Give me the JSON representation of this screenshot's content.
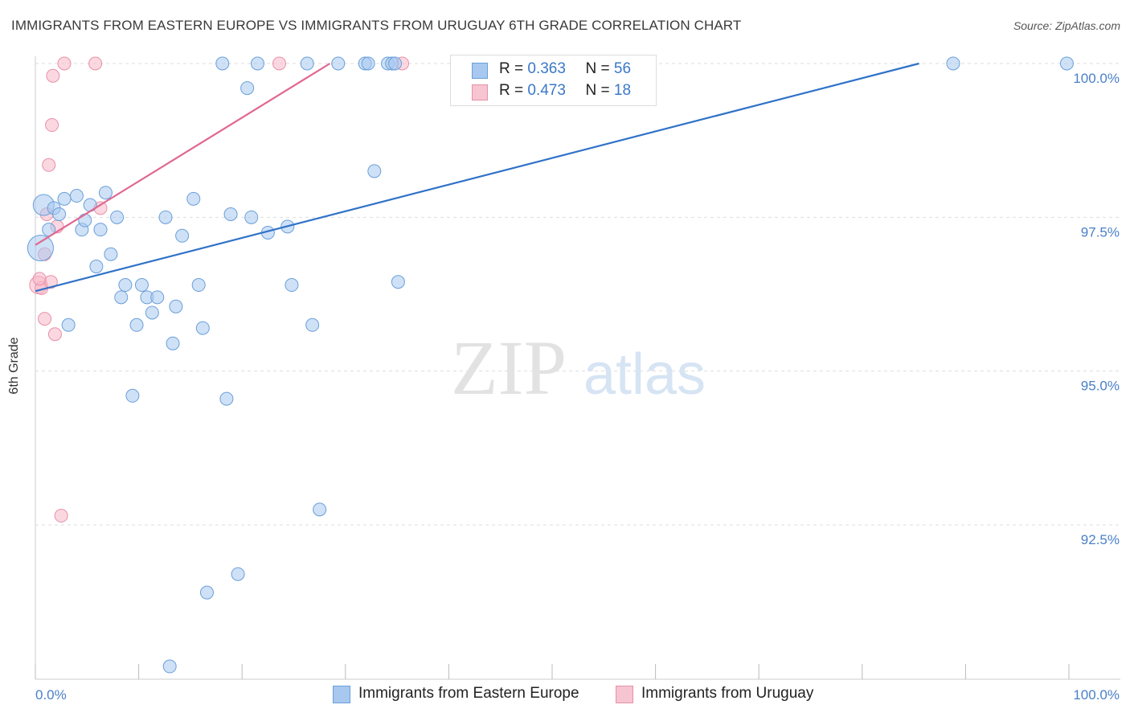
{
  "header": {
    "title": "IMMIGRANTS FROM EASTERN EUROPE VS IMMIGRANTS FROM URUGUAY 6TH GRADE CORRELATION CHART",
    "source": "Source: ZipAtlas.com"
  },
  "watermark": {
    "zip": "ZIP",
    "atlas": "atlas"
  },
  "legend": {
    "r_label": "R =",
    "n_label": "N =",
    "series1": {
      "r": "0.363",
      "n": "56"
    },
    "series2": {
      "r": "0.473",
      "n": "18"
    }
  },
  "colors": {
    "blue_fill": "#a8c8f0",
    "blue_stroke": "#6a9fd8",
    "blue_line": "#2f72c8",
    "pink_fill": "#f7b8c8",
    "pink_stroke": "#e890a8",
    "pink_line": "#e06890",
    "tick_label": "#4a80c8",
    "grid": "#dddddd"
  },
  "chart_data": {
    "type": "scatter",
    "title": "IMMIGRANTS FROM EASTERN EUROPE VS IMMIGRANTS FROM URUGUAY 6TH GRADE CORRELATION CHART",
    "xlabel": "",
    "ylabel": "6th Grade",
    "xlim": [
      0,
      100
    ],
    "ylim": [
      90.2,
      100.3
    ],
    "x_tick_labels": [
      "0.0%",
      "100.0%"
    ],
    "y_ticks": [
      {
        "value": 100.0,
        "label": "100.0%"
      },
      {
        "value": 97.5,
        "label": "97.5%"
      },
      {
        "value": 95.0,
        "label": "95.0%"
      },
      {
        "value": 92.5,
        "label": "92.5%"
      }
    ],
    "series": [
      {
        "name": "Immigrants from Eastern Europe",
        "color": "blue",
        "r": 0.363,
        "n": 56,
        "trend": {
          "x": [
            0,
            85.5
          ],
          "y": [
            96.3,
            100.0
          ]
        },
        "points": [
          {
            "x": 0.8,
            "y": 97.7,
            "s": 13
          },
          {
            "x": 0.5,
            "y": 97.0,
            "s": 16
          },
          {
            "x": 1.3,
            "y": 97.3
          },
          {
            "x": 1.8,
            "y": 97.65
          },
          {
            "x": 2.3,
            "y": 97.55
          },
          {
            "x": 2.8,
            "y": 97.8
          },
          {
            "x": 4.0,
            "y": 97.85
          },
          {
            "x": 3.2,
            "y": 95.75
          },
          {
            "x": 4.5,
            "y": 97.3
          },
          {
            "x": 4.8,
            "y": 97.45
          },
          {
            "x": 5.3,
            "y": 97.7
          },
          {
            "x": 5.9,
            "y": 96.7
          },
          {
            "x": 6.3,
            "y": 97.3
          },
          {
            "x": 6.8,
            "y": 97.9
          },
          {
            "x": 7.3,
            "y": 96.9
          },
          {
            "x": 7.9,
            "y": 97.5
          },
          {
            "x": 8.3,
            "y": 96.2
          },
          {
            "x": 8.7,
            "y": 96.4
          },
          {
            "x": 9.4,
            "y": 94.6
          },
          {
            "x": 9.8,
            "y": 95.75
          },
          {
            "x": 10.3,
            "y": 96.4
          },
          {
            "x": 10.8,
            "y": 96.2
          },
          {
            "x": 11.3,
            "y": 95.95
          },
          {
            "x": 11.8,
            "y": 96.2
          },
          {
            "x": 12.6,
            "y": 97.5
          },
          {
            "x": 13.0,
            "y": 90.2
          },
          {
            "x": 13.3,
            "y": 95.45
          },
          {
            "x": 13.6,
            "y": 96.05
          },
          {
            "x": 14.2,
            "y": 97.2
          },
          {
            "x": 15.3,
            "y": 97.8
          },
          {
            "x": 15.8,
            "y": 96.4
          },
          {
            "x": 16.2,
            "y": 95.7
          },
          {
            "x": 16.6,
            "y": 91.4
          },
          {
            "x": 18.1,
            "y": 100.0
          },
          {
            "x": 18.5,
            "y": 94.55
          },
          {
            "x": 18.9,
            "y": 97.55
          },
          {
            "x": 19.6,
            "y": 91.7
          },
          {
            "x": 20.5,
            "y": 99.6
          },
          {
            "x": 20.9,
            "y": 97.5
          },
          {
            "x": 21.5,
            "y": 100.0
          },
          {
            "x": 22.5,
            "y": 97.25
          },
          {
            "x": 24.4,
            "y": 97.35
          },
          {
            "x": 24.8,
            "y": 96.4
          },
          {
            "x": 26.3,
            "y": 100.0
          },
          {
            "x": 26.8,
            "y": 95.75
          },
          {
            "x": 27.5,
            "y": 92.75
          },
          {
            "x": 29.3,
            "y": 100.0
          },
          {
            "x": 31.9,
            "y": 100.0
          },
          {
            "x": 32.2,
            "y": 100.0
          },
          {
            "x": 32.8,
            "y": 98.25
          },
          {
            "x": 34.1,
            "y": 100.0
          },
          {
            "x": 34.5,
            "y": 100.0
          },
          {
            "x": 35.1,
            "y": 96.45
          },
          {
            "x": 88.8,
            "y": 100.0
          },
          {
            "x": 99.8,
            "y": 100.0
          },
          {
            "x": 34.8,
            "y": 100.0
          }
        ]
      },
      {
        "name": "Immigrants from Uruguay",
        "color": "pink",
        "r": 0.473,
        "n": 18,
        "trend": {
          "x": [
            0,
            28.5
          ],
          "y": [
            97.05,
            100.0
          ]
        },
        "points": [
          {
            "x": 0.3,
            "y": 96.4,
            "s": 11
          },
          {
            "x": 0.6,
            "y": 96.35
          },
          {
            "x": 0.9,
            "y": 96.9
          },
          {
            "x": 1.1,
            "y": 97.55
          },
          {
            "x": 1.3,
            "y": 98.35
          },
          {
            "x": 1.5,
            "y": 96.45
          },
          {
            "x": 1.6,
            "y": 99.0
          },
          {
            "x": 1.7,
            "y": 99.8
          },
          {
            "x": 0.9,
            "y": 95.85
          },
          {
            "x": 1.9,
            "y": 95.6
          },
          {
            "x": 2.1,
            "y": 97.35
          },
          {
            "x": 2.5,
            "y": 92.65
          },
          {
            "x": 2.8,
            "y": 100.0
          },
          {
            "x": 5.8,
            "y": 100.0
          },
          {
            "x": 6.3,
            "y": 97.65
          },
          {
            "x": 23.6,
            "y": 100.0
          },
          {
            "x": 35.5,
            "y": 100.0
          },
          {
            "x": 0.4,
            "y": 96.5
          }
        ]
      }
    ]
  },
  "bottom_legend": {
    "item1": "Immigrants from Eastern Europe",
    "item2": "Immigrants from Uruguay"
  }
}
